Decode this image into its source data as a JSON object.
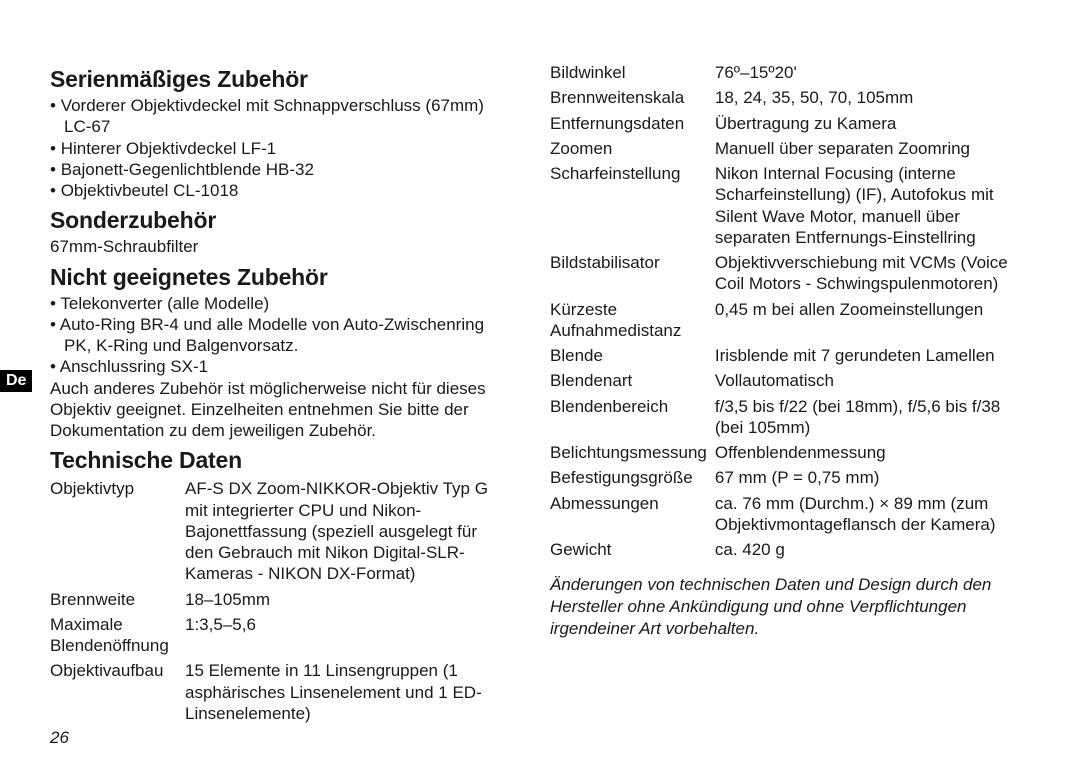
{
  "lang_tab": "De",
  "page_number": "26",
  "left": {
    "h1": "Serienmäßiges Zubehör",
    "accessories": [
      "Vorderer Objektivdeckel mit Schnappverschluss (67mm) LC-67",
      "Hinterer Objektivdeckel LF-1",
      "Bajonett-Gegenlichtblende HB-32",
      "Objektivbeutel CL-1018"
    ],
    "h2": "Sonderzubehör",
    "optional": "67mm-Schraubfilter",
    "h3": "Nicht geeignetes Zubehör",
    "incompatible": [
      "Telekonverter (alle Modelle)",
      "Auto-Ring BR-4 und alle Modelle von Auto-Zwischenring PK, K-Ring und Balgenvorsatz.",
      "Anschlussring SX-1"
    ],
    "incompatible_note": "Auch anderes Zubehör ist möglicherweise nicht für dieses Objektiv geeignet. Einzelheiten entnehmen Sie bitte der Dokumentation zu dem jeweiligen Zubehör.",
    "h4": "Technische Daten",
    "specs_left": [
      {
        "label": "Objektivtyp",
        "value": "AF-S DX Zoom-NIKKOR-Objektiv Typ G mit integrierter CPU und Nikon-Bajonettfassung (speziell ausgelegt für den Gebrauch mit Nikon Digital-SLR-Kameras - NIKON DX-Format)",
        "small": true
      },
      {
        "label": "Brennweite",
        "value": "18–105mm"
      },
      {
        "label": "Maximale Blendenöffnung",
        "value": "1:3,5–5,6"
      },
      {
        "label": "Objektivaufbau",
        "value": "15 Elemente in 11 Linsengruppen (1 asphärisches Linsenelement und 1 ED-Linsenelemente)",
        "small": true
      }
    ]
  },
  "right": {
    "specs_right": [
      {
        "label": "Bildwinkel",
        "value": "76º–15º20'"
      },
      {
        "label": "Brennweitenskala",
        "value": "18, 24, 35, 50, 70, 105mm"
      },
      {
        "label": "Entfernungsdaten",
        "value": "Übertragung zu Kamera"
      },
      {
        "label": "Zoomen",
        "value": "Manuell über separaten Zoomring"
      },
      {
        "label": "Scharfeinstellung",
        "value": "Nikon Internal Focusing (interne Scharfeinstellung) (IF), Autofokus mit Silent Wave Motor, manuell über separaten Entfernungs-Einstellring"
      },
      {
        "label": "Bildstabilisator",
        "value": "Objektivverschiebung mit VCMs (Voice Coil Motors - Schwingspulenmotoren)"
      },
      {
        "label": "Kürzeste Aufnahmedistanz",
        "value": "0,45 m bei allen Zoomeinstellungen"
      },
      {
        "label": "Blende",
        "value": "Irisblende mit 7 gerundeten Lamellen"
      },
      {
        "label": "Blendenart",
        "value": "Vollautomatisch"
      },
      {
        "label": "Blendenbereich",
        "value": "f/3,5 bis f/22 (bei 18mm), f/5,6 bis f/38 (bei 105mm)"
      },
      {
        "label": "Belichtungsmessung",
        "value": "Offenblendenmessung",
        "small_label": true
      },
      {
        "label": "Befestigungsgröße",
        "value": "67 mm (P = 0,75 mm)",
        "small_label": true
      },
      {
        "label": "Abmessungen",
        "value": "ca. 76 mm (Durchm.) × 89 mm (zum Objektivmontageflansch der Kamera)"
      },
      {
        "label": "Gewicht",
        "value": "ca. 420 g"
      }
    ],
    "disclaimer": "Änderungen von technischen Daten und Design durch den Hersteller ohne Ankündigung und ohne Verpflichtungen irgendeiner Art vorbehalten."
  }
}
